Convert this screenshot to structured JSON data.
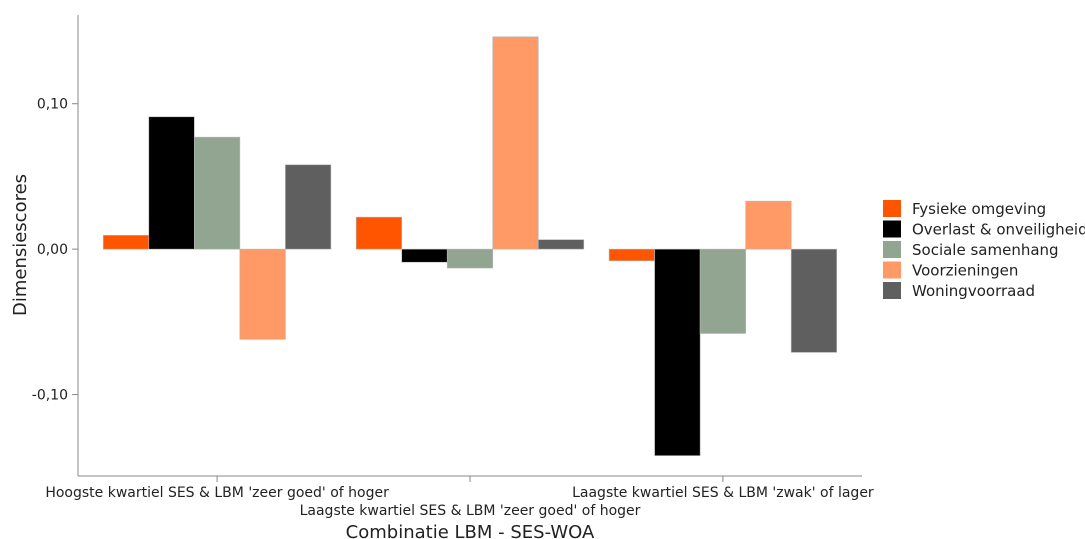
{
  "chart_data": {
    "type": "bar",
    "title": "",
    "xlabel": "Combinatie LBM - SES-WOA",
    "ylabel": "Dimensiescores",
    "ylim": [
      -0.156,
      0.161
    ],
    "yticks": [
      {
        "value": 0.1,
        "label": "0,10"
      },
      {
        "value": 0.0,
        "label": "0,00"
      },
      {
        "value": -0.1,
        "label": "-0,10"
      }
    ],
    "categories": [
      "Hoogste kwartiel SES & LBM 'zeer goed' of hoger",
      "Laagste kwartiel SES & LBM 'zeer goed' of hoger",
      "Laagste kwartiel SES & LBM 'zwak' of lager"
    ],
    "series": [
      {
        "name": "Fysieke omgeving",
        "color": "#FF5500",
        "values": [
          0.0095,
          0.022,
          -0.008
        ]
      },
      {
        "name": "Overlast & onveiligheid",
        "color": "#000000",
        "values": [
          0.091,
          -0.009,
          -0.142
        ]
      },
      {
        "name": "Sociale samenhang",
        "color": "#92A590",
        "values": [
          0.077,
          -0.013,
          -0.058
        ]
      },
      {
        "name": "Voorzieningen",
        "color": "#FF9966",
        "values": [
          -0.062,
          0.146,
          0.033
        ]
      },
      {
        "name": "Woningvoorraad",
        "color": "#5F5F5F",
        "values": [
          0.058,
          0.0065,
          -0.071
        ]
      }
    ],
    "grid": false,
    "legend_position": "right"
  }
}
